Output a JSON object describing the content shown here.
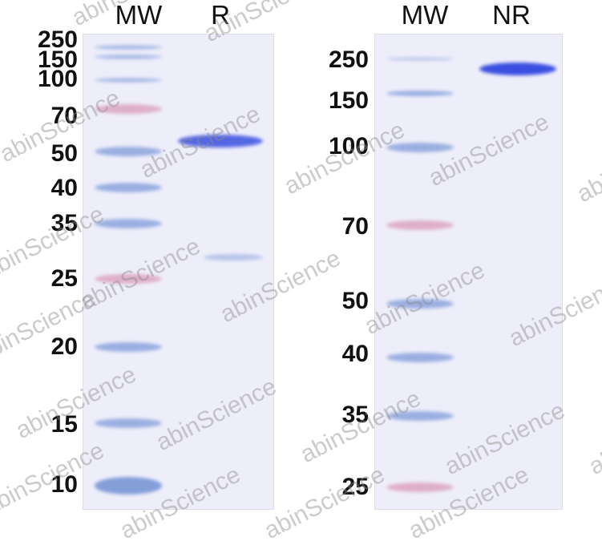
{
  "left_panel": {
    "lane_titles": [
      "MW",
      "R"
    ],
    "markers": [
      "250",
      "150",
      "100",
      "70",
      "50",
      "40",
      "35",
      "25",
      "20",
      "15",
      "10"
    ]
  },
  "right_panel": {
    "lane_titles": [
      "MW",
      "NR"
    ],
    "markers": [
      "250",
      "150",
      "100",
      "70",
      "50",
      "40",
      "35",
      "25"
    ]
  },
  "watermark": "abinScience",
  "colors": {
    "gel_background": "#eeeefa",
    "marker_blue": "#7e9ad8",
    "marker_pink": "#d99ab8",
    "sample_band": "#3a4fe0"
  }
}
